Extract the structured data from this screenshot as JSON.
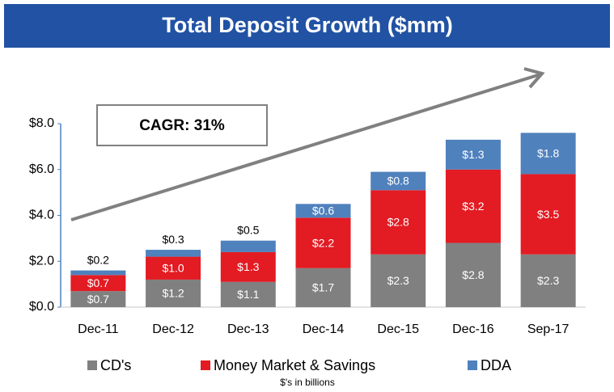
{
  "chart_data": {
    "type": "stacked_bar",
    "title": "Total Deposit Growth  ($mm)",
    "annotation": "CAGR:  31%",
    "footnote": "$'s in billions",
    "categories": [
      "Dec-11",
      "Dec-12",
      "Dec-13",
      "Dec-14",
      "Dec-15",
      "Dec-16",
      "Sep-17"
    ],
    "series": [
      {
        "name": "CD's",
        "color": "#808080",
        "values": [
          0.7,
          1.2,
          1.1,
          1.7,
          2.3,
          2.8,
          2.3
        ],
        "value_labels": [
          "$0.7",
          "$1.2",
          "$1.1",
          "$1.7",
          "$2.3",
          "$2.8",
          "$2.3"
        ]
      },
      {
        "name": "Money Market & Savings",
        "color": "#e31b23",
        "values": [
          0.7,
          1.0,
          1.3,
          2.2,
          2.8,
          3.2,
          3.5
        ],
        "value_labels": [
          "$0.7",
          "$1.0",
          "$1.3",
          "$2.2",
          "$2.8",
          "$3.2",
          "$3.5"
        ]
      },
      {
        "name": "DDA",
        "color": "#4f81bd",
        "values": [
          0.2,
          0.3,
          0.5,
          0.6,
          0.8,
          1.3,
          1.8
        ],
        "value_labels": [
          "$0.2",
          "$0.3",
          "$0.5",
          "$0.6",
          "$0.8",
          "$1.3",
          "$1.8"
        ]
      }
    ],
    "ylim": [
      0,
      8
    ],
    "yticks": [
      {
        "value": 0,
        "label": "$0.0"
      },
      {
        "value": 2,
        "label": "$2.0"
      },
      {
        "value": 4,
        "label": "$4.0"
      },
      {
        "value": 6,
        "label": "$6.0"
      },
      {
        "value": 8,
        "label": "$8.0"
      }
    ]
  }
}
